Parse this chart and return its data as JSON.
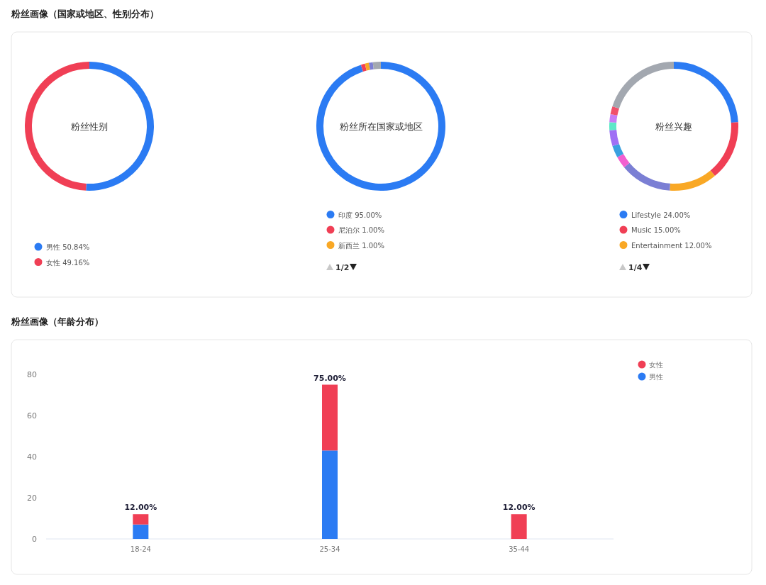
{
  "chart_data": [
    {
      "type": "donut",
      "title": "粉丝性别",
      "subtitle": "粉丝画像（国家或地区、性别分布）",
      "categories": [
        "男性",
        "女性"
      ],
      "values": [
        50.84,
        49.16
      ],
      "colors": [
        "#2b7bf3",
        "#f03f55"
      ],
      "value_labels": [
        "50.84%",
        "49.16%"
      ],
      "legend": "bottom"
    },
    {
      "type": "donut",
      "title": "粉丝所在国家或地区",
      "categories": [
        "印度",
        "尼泊尔",
        "新西兰",
        null,
        null
      ],
      "values": [
        95,
        1,
        1,
        1,
        2
      ],
      "colors": [
        "#2b7bf3",
        "#f03f55",
        "#f9a825",
        "#7b7fd4",
        "#a3a8b0"
      ],
      "value_labels": [
        "95.00%",
        "1.00%",
        "1.00%",
        null,
        null
      ],
      "legend": "bottom",
      "annotations": [
        "1/2"
      ]
    },
    {
      "type": "donut",
      "title": "粉丝兴趣",
      "categories": [
        "Lifestyle",
        "Music",
        "Entertainment",
        null,
        null,
        null,
        null,
        null,
        null,
        null,
        null
      ],
      "values": [
        24,
        15,
        12,
        13,
        3,
        3,
        4,
        2,
        2,
        2,
        20
      ],
      "colors": [
        "#2b7bf3",
        "#f03f55",
        "#f9a825",
        "#7b7fd4",
        "#f25fd0",
        "#3aa0e0",
        "#a070f5",
        "#5ee8c8",
        "#c77cf5",
        "#f0506a",
        "#a3a8b0"
      ],
      "value_labels": [
        "24.00%",
        "15.00%",
        "12.00%",
        null,
        null,
        null,
        null,
        null,
        null,
        null,
        null
      ],
      "legend": "bottom",
      "annotations": [
        "1/4"
      ]
    },
    {
      "type": "bar",
      "title": "粉丝画像（年龄分布）",
      "categories": [
        "18-24",
        "25-34",
        "35-44"
      ],
      "stacked": true,
      "series": [
        {
          "name": "男性",
          "color": "#2b7bf3",
          "values": [
            7,
            43,
            null
          ]
        },
        {
          "name": "女性",
          "color": "#f03f55",
          "values": [
            5,
            32,
            12
          ]
        }
      ],
      "totals": [
        "12.00%",
        "75.00%",
        "12.00%"
      ],
      "ylim": [
        0,
        80
      ],
      "yticks": [
        0,
        20,
        40,
        60,
        80
      ],
      "legend": "top right"
    }
  ]
}
